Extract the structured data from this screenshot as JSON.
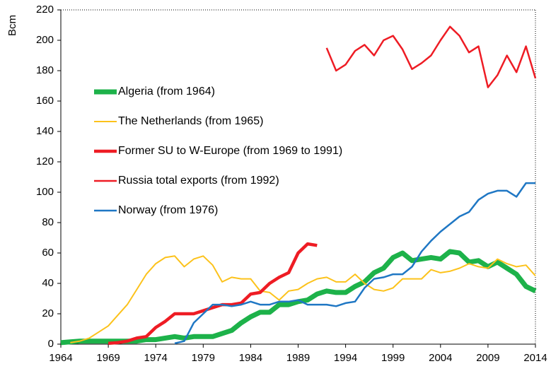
{
  "chart_data": {
    "type": "line",
    "ylabel": "Bcm",
    "x": [
      1964,
      1965,
      1966,
      1967,
      1968,
      1969,
      1970,
      1971,
      1972,
      1973,
      1974,
      1975,
      1976,
      1977,
      1978,
      1979,
      1980,
      1981,
      1982,
      1983,
      1984,
      1985,
      1986,
      1987,
      1988,
      1989,
      1990,
      1991,
      1992,
      1993,
      1994,
      1995,
      1996,
      1997,
      1998,
      1999,
      2000,
      2001,
      2002,
      2003,
      2004,
      2005,
      2006,
      2007,
      2008,
      2009,
      2010,
      2011,
      2012,
      2013,
      2014
    ],
    "series": [
      {
        "name": "Algeria (from 1964)",
        "color": "#1db24a",
        "line_width": 7,
        "values": [
          1,
          1.5,
          2,
          2,
          2,
          2,
          2,
          2,
          2,
          3,
          3,
          4,
          5,
          4,
          5,
          5,
          5,
          7,
          9,
          14,
          18,
          21,
          21,
          26,
          26,
          28,
          29,
          33,
          35,
          34,
          34,
          38,
          41,
          47,
          50,
          57,
          60,
          55,
          56,
          57,
          56,
          61,
          60,
          54,
          55,
          51,
          54,
          50,
          46,
          38,
          35
        ]
      },
      {
        "name": "The Netherlands (from 1965)",
        "color": "#fcc21b",
        "line_width": 2,
        "values": [
          null,
          1,
          2,
          4,
          8,
          12,
          19,
          26,
          36,
          46,
          53,
          57,
          58,
          51,
          56,
          58,
          52,
          41,
          44,
          43,
          43,
          35,
          34,
          29,
          35,
          36,
          40,
          43,
          44,
          41,
          41,
          46,
          40,
          36,
          35,
          37,
          43,
          43,
          43,
          49,
          47,
          48,
          50,
          53,
          51,
          50,
          56,
          53,
          51,
          52,
          45
        ]
      },
      {
        "name": "Former SU to W-Europe (from 1969 to 1991)",
        "color": "#ee1c24",
        "line_width": 4.5,
        "values": [
          null,
          null,
          null,
          null,
          null,
          0.5,
          1,
          2,
          4,
          5,
          11,
          15,
          20,
          20,
          20,
          22,
          24,
          26,
          26,
          27,
          33,
          34,
          40,
          44,
          47,
          60,
          66,
          65,
          null,
          null,
          null,
          null,
          null,
          null,
          null,
          null,
          null,
          null,
          null,
          null,
          null,
          null,
          null,
          null,
          null,
          null,
          null,
          null,
          null,
          null,
          null
        ]
      },
      {
        "name": "Russia total exports (from 1992)",
        "color": "#ee1c24",
        "line_width": 2.5,
        "values": [
          null,
          null,
          null,
          null,
          null,
          null,
          null,
          null,
          null,
          null,
          null,
          null,
          null,
          null,
          null,
          null,
          null,
          null,
          null,
          null,
          null,
          null,
          null,
          null,
          null,
          null,
          null,
          null,
          195,
          180,
          184,
          193,
          197,
          190,
          200,
          203,
          194,
          181,
          185,
          190,
          200,
          209,
          203,
          192,
          196,
          169,
          177,
          190,
          179,
          196,
          175
        ]
      },
      {
        "name": "Norway (from 1976)",
        "color": "#1f77c4",
        "line_width": 2.5,
        "values": [
          null,
          null,
          null,
          null,
          null,
          null,
          null,
          null,
          null,
          null,
          null,
          null,
          0.5,
          2,
          14,
          20,
          26,
          26,
          25,
          26,
          28,
          26,
          26,
          28,
          28,
          29,
          26,
          26,
          26,
          25,
          27,
          28,
          37,
          43,
          44,
          46,
          46,
          51,
          61,
          68,
          74,
          79,
          84,
          87,
          95,
          99,
          101,
          101,
          97,
          106,
          106
        ]
      }
    ],
    "xlim": [
      1964,
      2014
    ],
    "xticks": [
      1964,
      1969,
      1974,
      1979,
      1984,
      1989,
      1994,
      1999,
      2004,
      2009,
      2014
    ],
    "ylim": [
      0,
      220
    ],
    "yticks": [
      0,
      20,
      40,
      60,
      80,
      100,
      120,
      140,
      160,
      180,
      200,
      220
    ],
    "grid": false
  }
}
